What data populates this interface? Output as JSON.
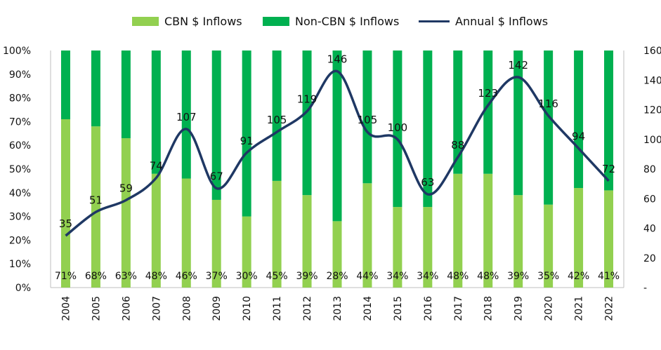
{
  "chart_data": {
    "type": "bar",
    "categories": [
      "2004",
      "2005",
      "2006",
      "2007",
      "2008",
      "2009",
      "2010",
      "2011",
      "2012",
      "2013",
      "2014",
      "2015",
      "2016",
      "2017",
      "2018",
      "2019",
      "2020",
      "2021",
      "2022"
    ],
    "series": [
      {
        "name": "CBN $ Inflows",
        "kind": "stacked-bar",
        "axis": "left",
        "values": [
          71,
          68,
          63,
          48,
          46,
          37,
          30,
          45,
          39,
          28,
          44,
          34,
          34,
          48,
          48,
          39,
          35,
          42,
          41
        ],
        "labels": [
          "71%",
          "68%",
          "63%",
          "48%",
          "46%",
          "37%",
          "30%",
          "45%",
          "39%",
          "28%",
          "44%",
          "34%",
          "34%",
          "48%",
          "48%",
          "39%",
          "35%",
          "42%",
          "41%"
        ]
      },
      {
        "name": "Non-CBN $ Inflows",
        "kind": "stacked-bar",
        "axis": "left",
        "values": [
          29,
          32,
          37,
          52,
          54,
          63,
          70,
          55,
          61,
          72,
          56,
          66,
          66,
          52,
          52,
          61,
          65,
          58,
          59
        ]
      },
      {
        "name": "Annual $ Inflows",
        "kind": "line",
        "axis": "right",
        "values": [
          35,
          51,
          59,
          74,
          107,
          67,
          91,
          105,
          119,
          146,
          105,
          100,
          63,
          88,
          123,
          142,
          116,
          94,
          72
        ]
      }
    ],
    "left_axis": {
      "ylim": [
        0,
        100
      ],
      "ticks": [
        "0%",
        "10%",
        "20%",
        "30%",
        "40%",
        "50%",
        "60%",
        "70%",
        "80%",
        "90%",
        "100%"
      ]
    },
    "right_axis": {
      "ylim": [
        0,
        160
      ],
      "ticks": [
        "-",
        "20",
        "40",
        "60",
        "80",
        "100",
        "120",
        "140",
        "160"
      ]
    },
    "legend_position": "top",
    "grid": false,
    "colors": {
      "cbn": "#92D050",
      "non_cbn": "#00B050",
      "line": "#1F3864"
    }
  }
}
